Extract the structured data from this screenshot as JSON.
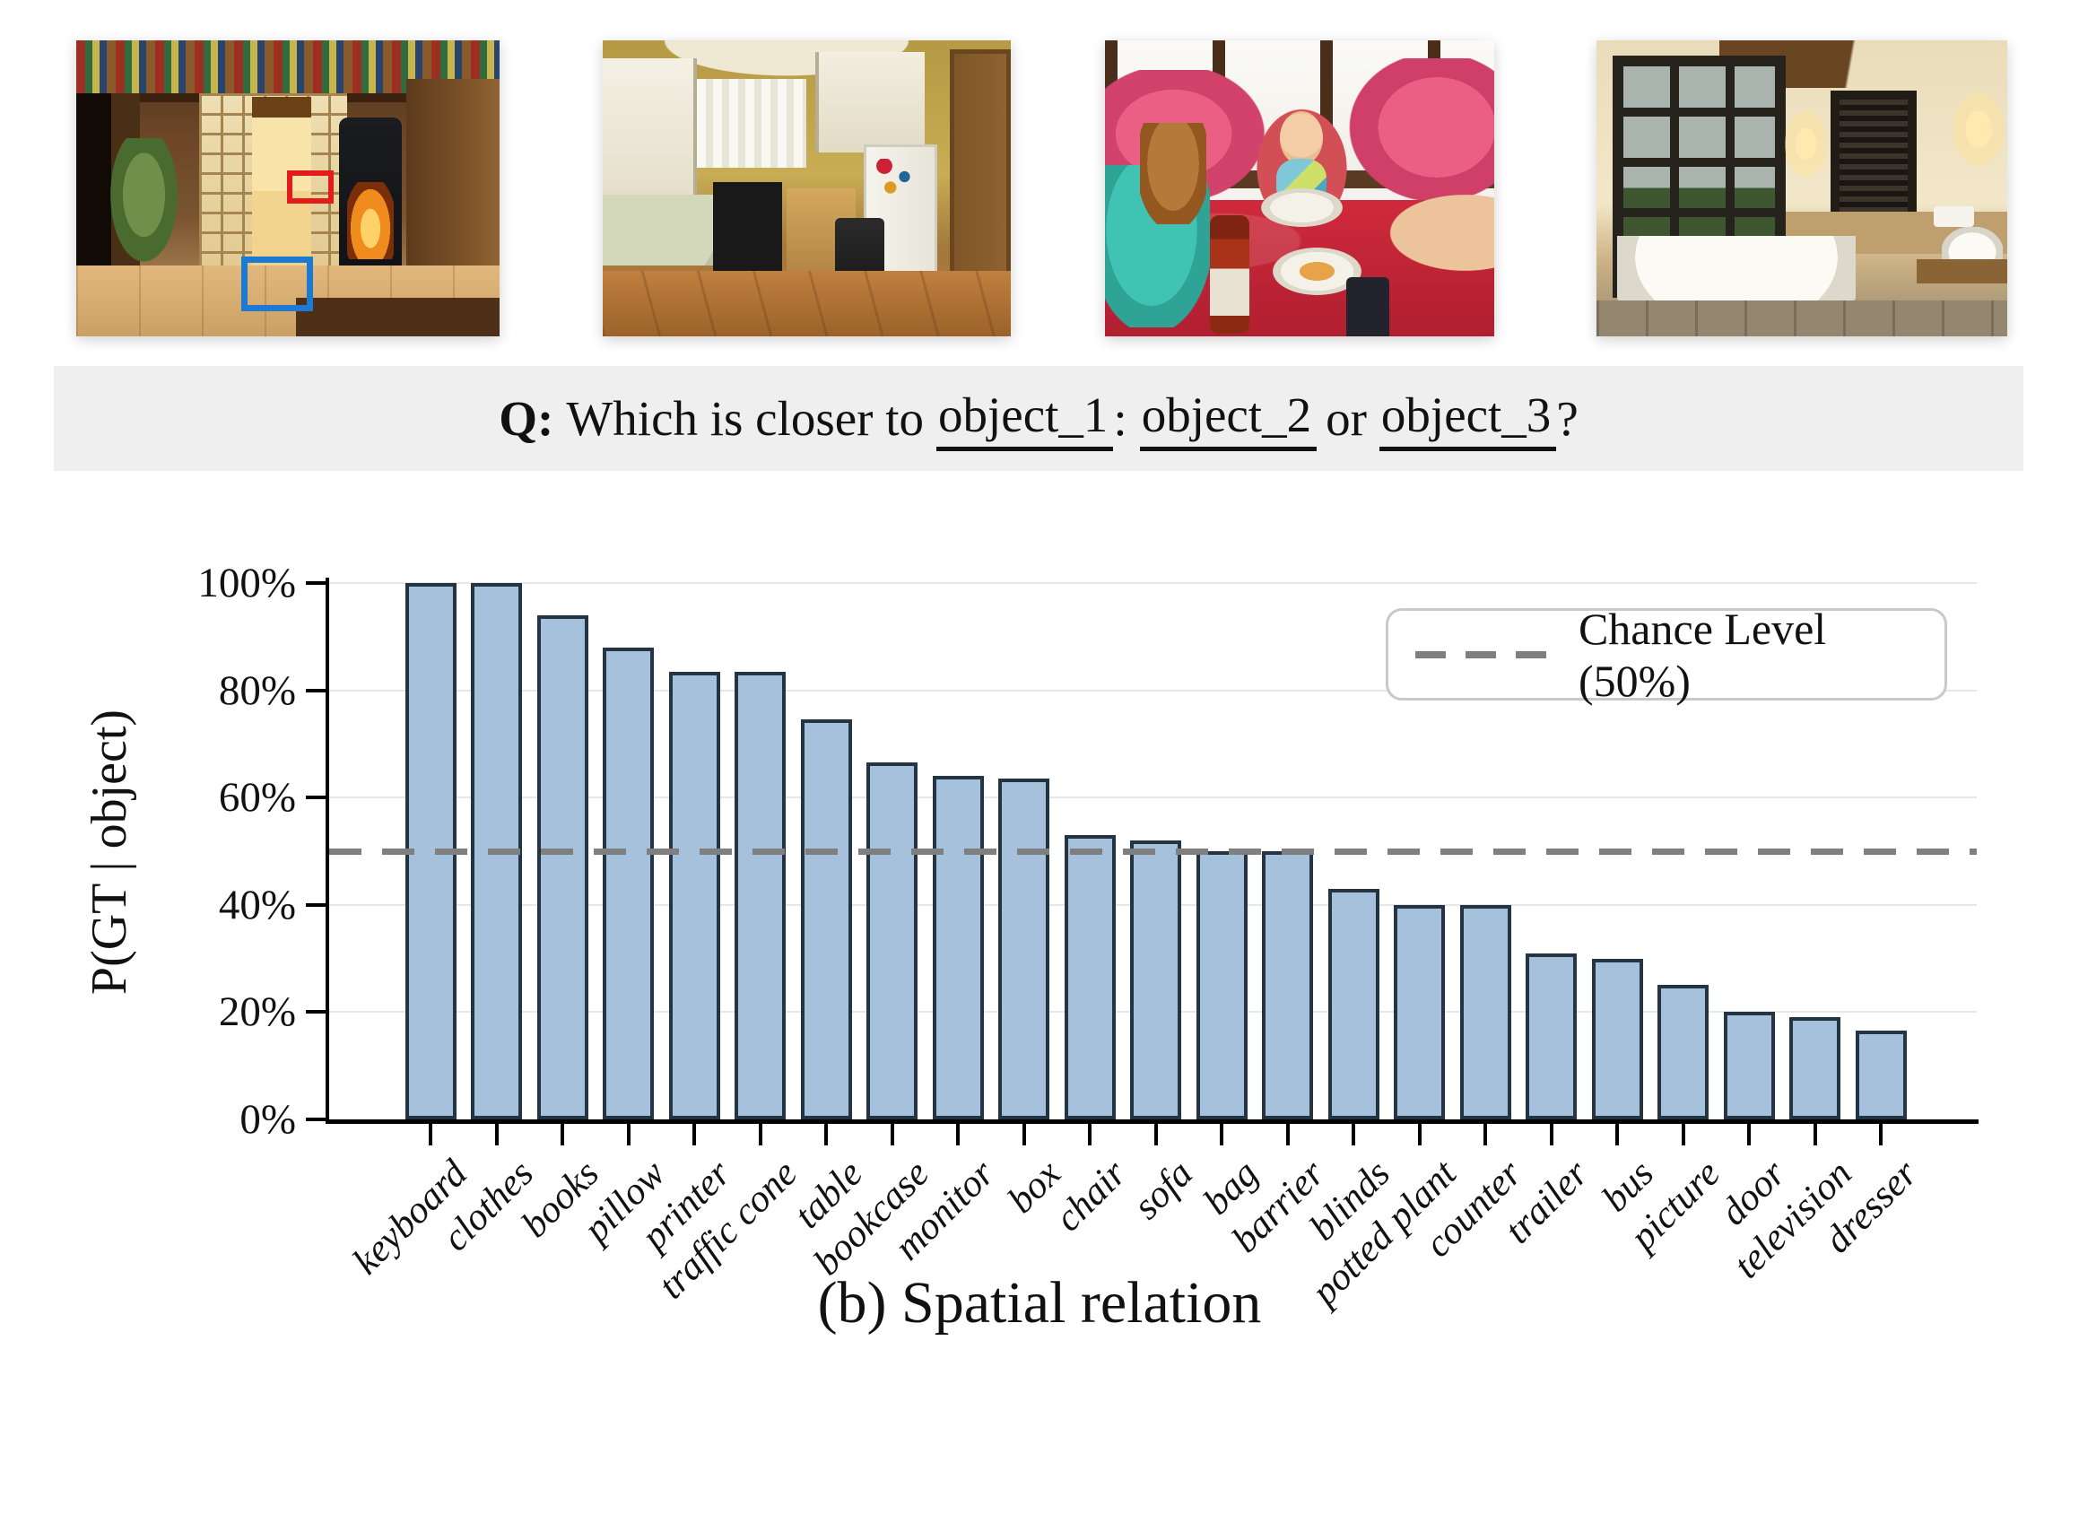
{
  "question": {
    "q": "Q:",
    "before": "Which is closer to",
    "obj1": "object_1",
    "colon": ":",
    "obj2": "object_2",
    "or": "or",
    "obj3": "object_3",
    "qmark": "?"
  },
  "caption": "(b) Spatial relation",
  "colors": {
    "bar_fill": "#a6c1dc",
    "bar_edge": "#243442",
    "chance_line": "#7f7f7f",
    "banner_bg": "#efefef",
    "grid": "#e7e7e7",
    "bbox_red": "#e21b1b",
    "bbox_blue": "#1a7ad4"
  },
  "chart_data": {
    "type": "bar",
    "title": "",
    "xlabel": "",
    "ylabel": "P(GT | object)",
    "ylim": [
      0,
      100
    ],
    "grid": true,
    "chance_level": 50,
    "legend": {
      "label": "Chance Level (50%)",
      "position": "upper-right",
      "line_style": "dashed",
      "line_color": "#7f7f7f"
    },
    "yticks": [
      {
        "value": 0,
        "label": "0%"
      },
      {
        "value": 20,
        "label": "20%"
      },
      {
        "value": 40,
        "label": "40%"
      },
      {
        "value": 60,
        "label": "60%"
      },
      {
        "value": 80,
        "label": "80%"
      },
      {
        "value": 100,
        "label": "100%"
      }
    ],
    "categories": [
      "keyboard",
      "clothes",
      "books",
      "pillow",
      "printer",
      "traffic cone",
      "table",
      "bookcase",
      "monitor",
      "box",
      "chair",
      "sofa",
      "bag",
      "barrier",
      "blinds",
      "potted plant",
      "counter",
      "trailer",
      "bus",
      "picture",
      "door",
      "television",
      "dresser"
    ],
    "values": [
      100,
      100,
      94,
      88,
      83.5,
      83.5,
      74.5,
      66.5,
      64,
      63.5,
      53,
      52,
      50,
      50,
      43,
      40,
      40,
      31,
      30,
      25,
      20,
      19,
      16.5
    ]
  }
}
